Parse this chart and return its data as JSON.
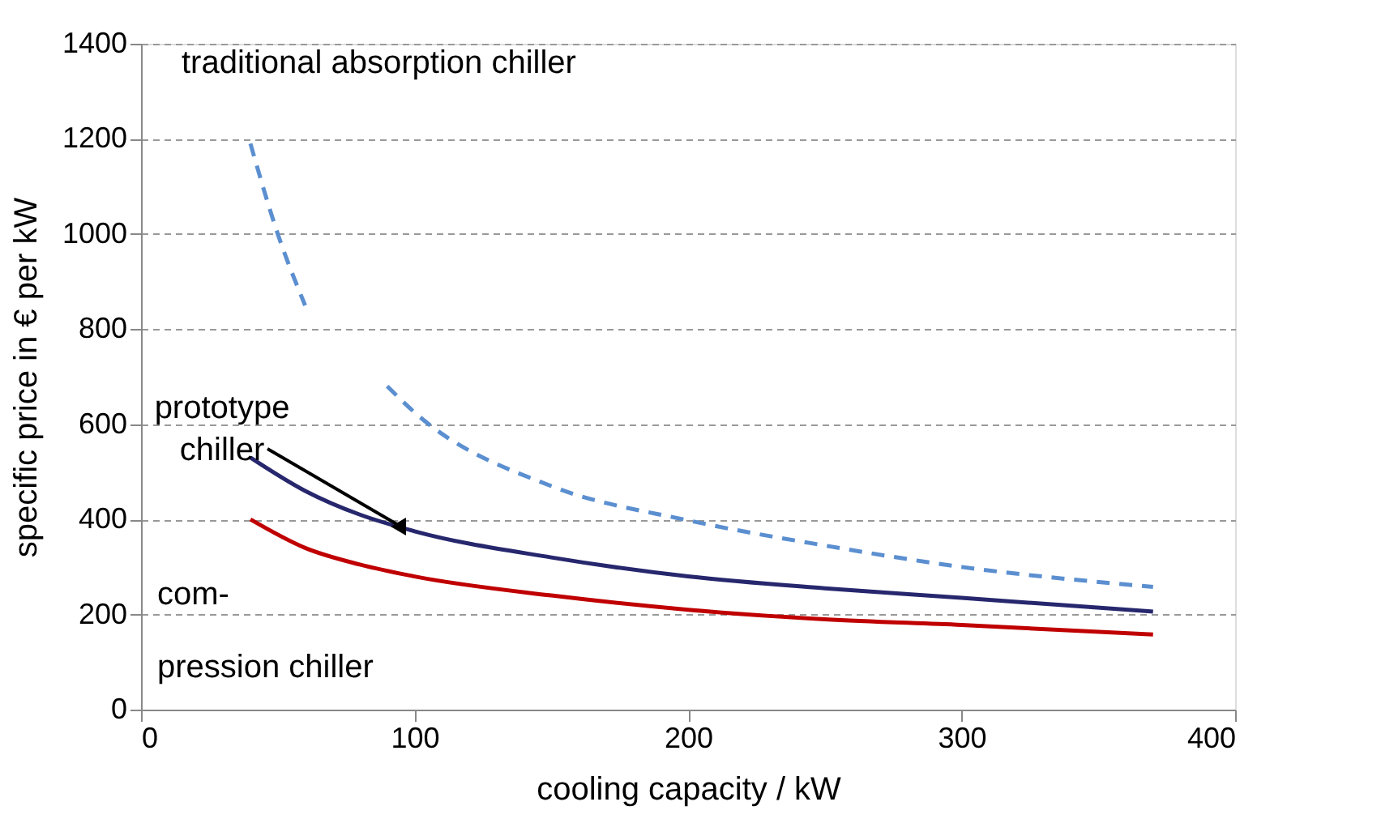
{
  "chart_data": {
    "type": "line",
    "xlabel": "cooling capacity / kW",
    "ylabel": "specific price in € per kW",
    "xlim": [
      0,
      400
    ],
    "xticks": [
      0,
      100,
      200,
      300,
      400
    ],
    "ylim": [
      0,
      1400
    ],
    "yticks": [
      0,
      200,
      400,
      600,
      800,
      1000,
      1200,
      1400
    ],
    "grid": "y",
    "marker": "none",
    "series": [
      {
        "color": "#5b8fd0",
        "line_style": "dashed",
        "x": [
          40,
          50,
          60,
          70,
          80,
          90,
          100,
          150,
          200,
          250,
          300,
          370
        ],
        "values": [
          1190,
          1000,
          850,
          null,
          null,
          680,
          625,
          470,
          398,
          345,
          300,
          258
        ]
      },
      {
        "color": "#27276e",
        "line_style": "solid",
        "x": [
          40,
          60,
          80,
          100,
          150,
          200,
          250,
          300,
          370
        ],
        "values": [
          530,
          460,
          410,
          375,
          320,
          280,
          255,
          235,
          206
        ]
      },
      {
        "color": "#c00000",
        "line_style": "solid",
        "x": [
          40,
          60,
          80,
          100,
          150,
          200,
          250,
          300,
          370
        ],
        "values": [
          400,
          340,
          305,
          280,
          240,
          210,
          190,
          178,
          158
        ]
      }
    ],
    "annotations": [
      "traditional absorption chiller",
      {
        "text": "prototype chiller",
        "x": 95,
        "y": 385
      },
      "com-",
      "pression chiller"
    ]
  }
}
